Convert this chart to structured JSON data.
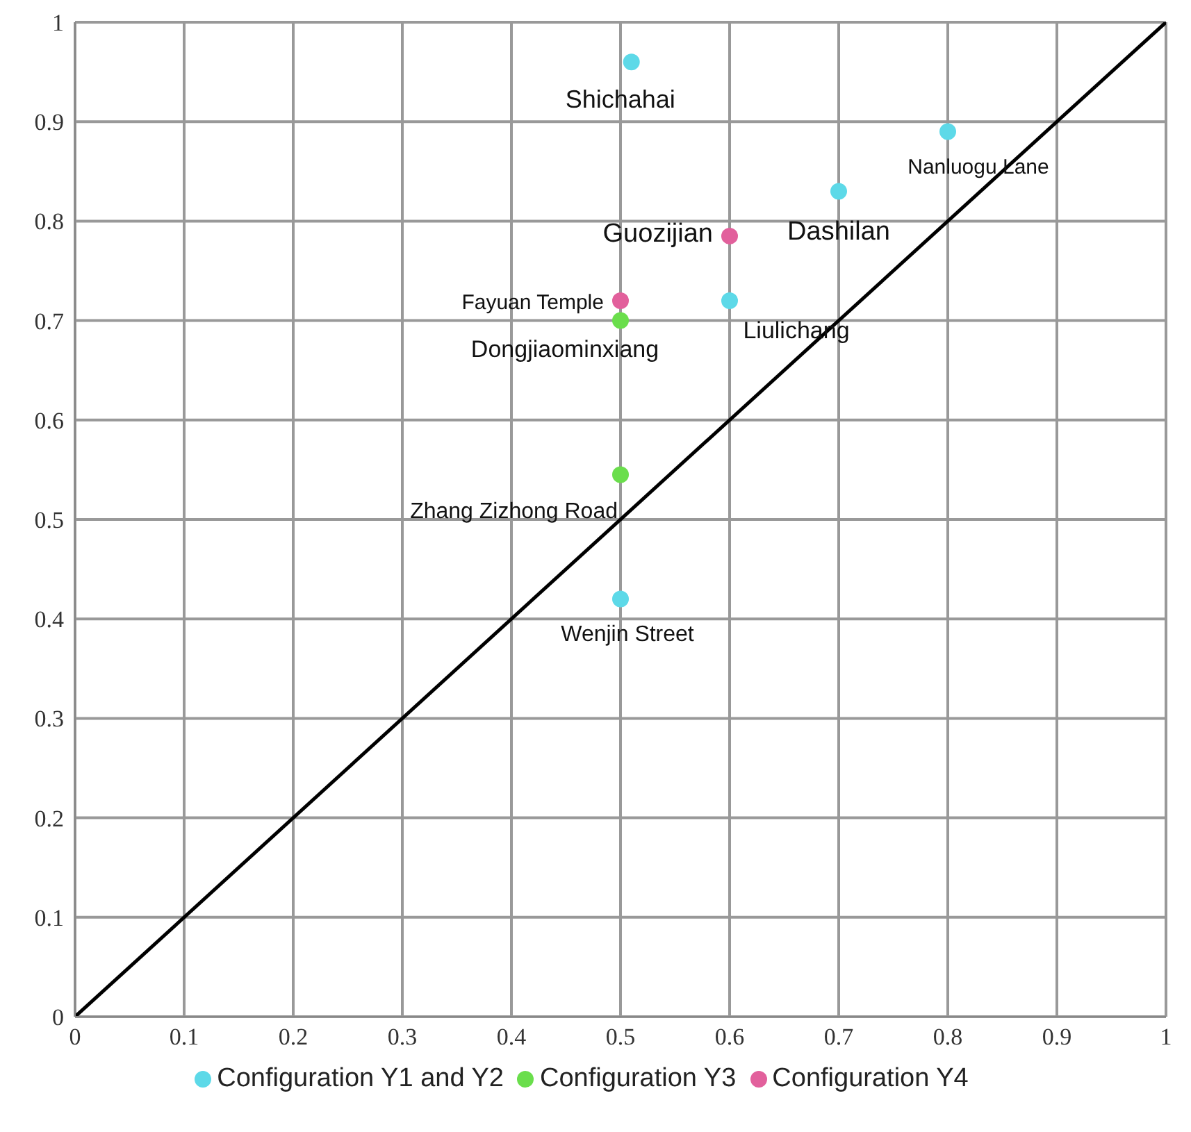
{
  "chart_data": {
    "type": "scatter",
    "xlim": [
      0,
      1
    ],
    "ylim": [
      0,
      1
    ],
    "xticks": [
      0,
      0.1,
      0.2,
      0.3,
      0.4,
      0.5,
      0.6,
      0.7,
      0.8,
      0.9,
      1
    ],
    "yticks": [
      0,
      0.1,
      0.2,
      0.3,
      0.4,
      0.5,
      0.6,
      0.7,
      0.8,
      0.9,
      1
    ],
    "grid": true,
    "legend": "bottom",
    "marker": "circle",
    "series": [
      {
        "name": "Configuration Y1 and Y2",
        "color": "#5dd9e8",
        "x": [
          0.51,
          0.8,
          0.7,
          0.6,
          0.5
        ],
        "values": [
          0.96,
          0.89,
          0.83,
          0.72,
          0.42
        ]
      },
      {
        "name": "Configuration Y3",
        "color": "#6ade4c",
        "x": [
          0.5,
          0.5
        ],
        "values": [
          0.7,
          0.545
        ]
      },
      {
        "name": "Configuration Y4",
        "color": "#e2609c",
        "x": [
          0.6,
          0.5
        ],
        "values": [
          0.785,
          0.72
        ]
      },
      {
        "type": "line",
        "color": "#000000",
        "x": [
          0,
          1
        ],
        "values": [
          0,
          1
        ],
        "marker": "none"
      }
    ],
    "annotations": [
      {
        "text": "Shichahai",
        "x": 0.51,
        "y": 0.96
      },
      {
        "text": "Nanluogu Lane",
        "x": 0.8,
        "y": 0.89
      },
      {
        "text": "Dashilan",
        "x": 0.7,
        "y": 0.83
      },
      {
        "text": "Guozijian",
        "x": 0.6,
        "y": 0.785
      },
      {
        "text": "Fayuan Temple",
        "x": 0.5,
        "y": 0.72
      },
      {
        "text": "Dongjiaominxiang",
        "x": 0.5,
        "y": 0.7
      },
      {
        "text": "Liulichang",
        "x": 0.6,
        "y": 0.72
      },
      {
        "text": "Zhang Zizhong Road",
        "x": 0.5,
        "y": 0.545
      },
      {
        "text": "Wenjin Street",
        "x": 0.5,
        "y": 0.42
      }
    ]
  }
}
